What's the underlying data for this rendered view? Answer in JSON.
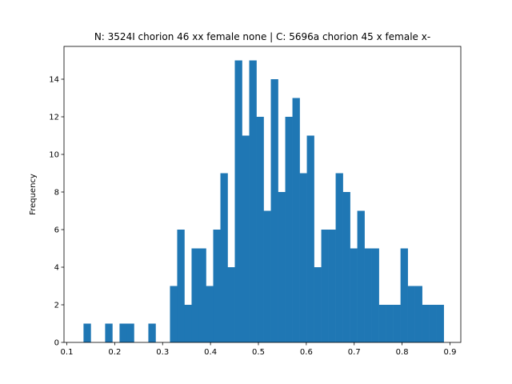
{
  "chart_data": {
    "type": "bar",
    "subtype": "histogram",
    "title": "N: 3524I chorion 46 xx female none | C: 5696a chorion 45 x female x-",
    "xlabel": "",
    "ylabel": "Frequency",
    "xlim": [
      0.1,
      0.9
    ],
    "ylim": [
      0,
      15
    ],
    "bar_color": "#1f77b4",
    "grid": false,
    "x_ticks": [
      0.1,
      0.2,
      0.3,
      0.4,
      0.5,
      0.6,
      0.7,
      0.8,
      0.9
    ],
    "x_tick_labels": [
      "0.1",
      "0.2",
      "0.3",
      "0.4",
      "0.5",
      "0.6",
      "0.7",
      "0.8",
      "0.9"
    ],
    "y_ticks": [
      0,
      2,
      4,
      6,
      8,
      10,
      12,
      14
    ],
    "y_tick_labels": [
      "0",
      "2",
      "4",
      "6",
      "8",
      "10",
      "12",
      "14"
    ],
    "bins": {
      "x_start": 0.1349,
      "bin_width": 0.01504,
      "counts": [
        1,
        0,
        0,
        1,
        0,
        1,
        1,
        0,
        0,
        1,
        0,
        0,
        3,
        6,
        2,
        5,
        5,
        3,
        6,
        9,
        4,
        15,
        11,
        15,
        12,
        7,
        14,
        8,
        12,
        13,
        9,
        11,
        4,
        6,
        6,
        9,
        8,
        5,
        7,
        5,
        5,
        2,
        2,
        2,
        5,
        3,
        3,
        2,
        2,
        2
      ]
    }
  }
}
